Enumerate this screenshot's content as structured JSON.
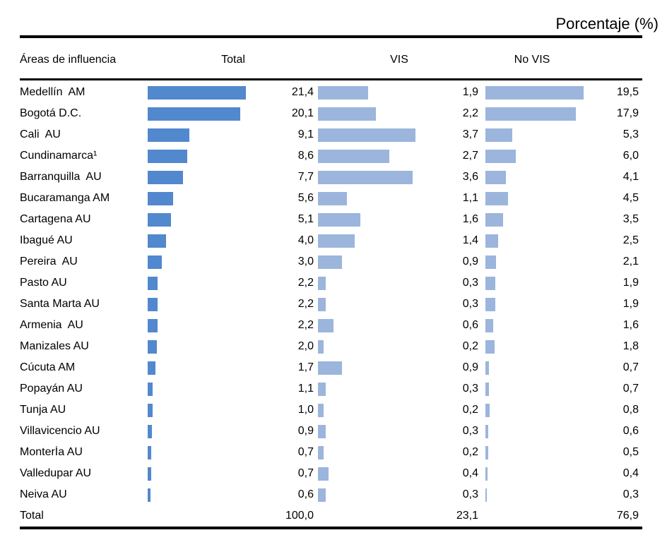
{
  "title": "Porcentaje (%)",
  "columns": {
    "areas": "Áreas de influencia",
    "total": "Total",
    "vis": "VIS",
    "no_vis": "No VIS"
  },
  "colors": {
    "total_bar": "#5288CE",
    "vis_bar": "#9BB5DC",
    "no_vis_bar": "#9BB5DC",
    "rule": "#000000"
  },
  "chart_data": {
    "type": "bar",
    "orientation": "horizontal",
    "title": "Porcentaje (%)",
    "value_unit": "percent",
    "decimal_separator": ",",
    "legend_position": "column-headers",
    "grid": false,
    "bars_normalized_per_column": true,
    "categories": [
      "Medellín  AM",
      "Bogotá D.C.",
      "Cali  AU",
      "Cundinamarca¹",
      "Barranquilla  AU",
      "Bucaramanga AM",
      "Cartagena AU",
      "Ibagué AU",
      "Pereira  AU",
      "Pasto AU",
      "Santa Marta AU",
      "Armenia  AU",
      "Manizales AU",
      "Cúcuta AM",
      "Popayán AU",
      "Tunja AU",
      "Villavicencio AU",
      "MonterÍa AU",
      "Valledupar AU",
      "Neiva AU"
    ],
    "series": [
      {
        "name": "Total",
        "values": [
          21.4,
          20.1,
          9.1,
          8.6,
          7.7,
          5.6,
          5.1,
          4.0,
          3.0,
          2.2,
          2.2,
          2.2,
          2.0,
          1.7,
          1.1,
          1.0,
          0.9,
          0.7,
          0.7,
          0.6
        ]
      },
      {
        "name": "VIS",
        "values": [
          1.9,
          2.2,
          3.7,
          2.7,
          3.6,
          1.1,
          1.6,
          1.4,
          0.9,
          0.3,
          0.3,
          0.6,
          0.2,
          0.9,
          0.3,
          0.2,
          0.3,
          0.2,
          0.4,
          0.3
        ]
      },
      {
        "name": "No VIS",
        "values": [
          19.5,
          17.9,
          5.3,
          6.0,
          4.1,
          4.5,
          3.5,
          2.5,
          2.1,
          1.9,
          1.9,
          1.6,
          1.8,
          0.7,
          0.7,
          0.8,
          0.6,
          0.5,
          0.4,
          0.3
        ]
      }
    ],
    "totals": {
      "label": "Total",
      "total": 100.0,
      "vis": 23.1,
      "no_vis": 76.9
    }
  }
}
